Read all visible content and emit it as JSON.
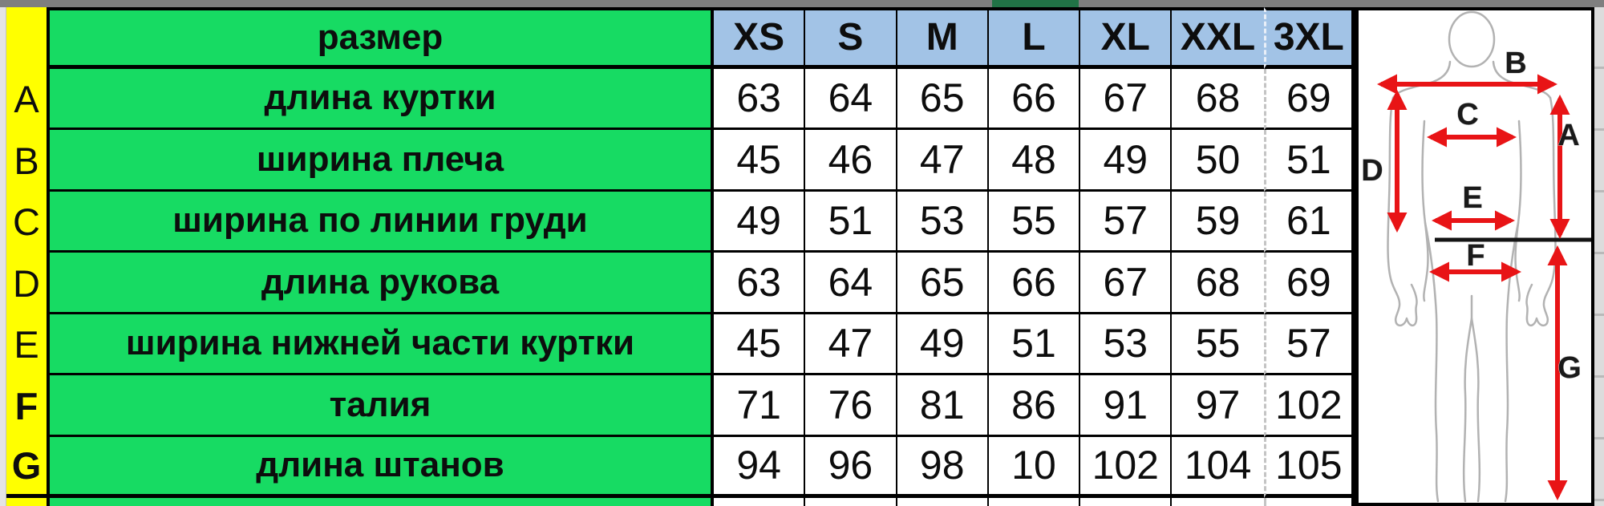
{
  "chart_data": {
    "type": "table",
    "title": "размер",
    "columns": [
      "XS",
      "S",
      "M",
      "L",
      "XL",
      "XXL",
      "3XL"
    ],
    "rows": [
      {
        "letter": "A",
        "label": "длина куртки",
        "values": [
          63,
          64,
          65,
          66,
          67,
          68,
          69
        ]
      },
      {
        "letter": "B",
        "label": "ширина плеча",
        "values": [
          45,
          46,
          47,
          48,
          49,
          50,
          51
        ]
      },
      {
        "letter": "C",
        "label": "ширина по линии груди",
        "values": [
          49,
          51,
          53,
          55,
          57,
          59,
          61
        ]
      },
      {
        "letter": "D",
        "label": "длина рукова",
        "values": [
          63,
          64,
          65,
          66,
          67,
          68,
          69
        ]
      },
      {
        "letter": "E",
        "label": "ширина нижней части куртки",
        "values": [
          45,
          47,
          49,
          51,
          53,
          55,
          57
        ]
      },
      {
        "letter": "F",
        "label": "талия",
        "values": [
          71,
          76,
          81,
          86,
          91,
          97,
          102
        ],
        "bold_letter": true
      },
      {
        "letter": "G",
        "label": "длина штанов",
        "values": [
          94,
          96,
          98,
          10,
          102,
          104,
          105
        ],
        "bold_letter": true
      }
    ]
  },
  "diagram": {
    "arrow_labels": [
      "A",
      "B",
      "C",
      "D",
      "E",
      "F",
      "G"
    ]
  },
  "colors": {
    "row_header_yellow": "#ffff00",
    "label_green": "#17db63",
    "size_header_blue": "#a2c3e6",
    "arrow_red": "#e81416",
    "excel_tab_green": "#217346",
    "chrome_gray": "#7f7f7f"
  }
}
